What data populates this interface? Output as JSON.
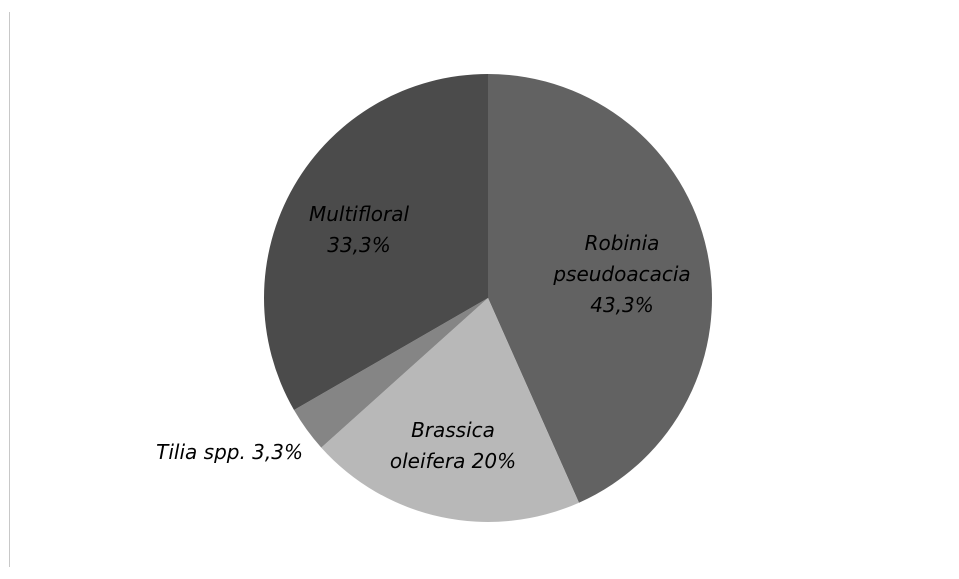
{
  "chart_data": {
    "type": "pie",
    "title": "",
    "start_angle_deg": 0,
    "direction": "clockwise",
    "legend": "none",
    "slices": [
      {
        "label_lines": [
          "Robinia",
          "pseudoacacia",
          "43,3%"
        ],
        "value": 43.3,
        "color": "#626262",
        "label_pos": "inside"
      },
      {
        "label_lines": [
          "Brassica",
          "oleifera 20%"
        ],
        "value": 20,
        "color": "#b8b8b8",
        "label_pos": "inside"
      },
      {
        "label_lines": [
          "Tilia spp. 3,3%"
        ],
        "value": 3.3,
        "color": "#858585",
        "label_pos": "outside-left"
      },
      {
        "label_lines": [
          "Multifloral",
          "33,3%"
        ],
        "value": 33.3,
        "color": "#4b4b4b",
        "label_pos": "inside"
      }
    ]
  }
}
